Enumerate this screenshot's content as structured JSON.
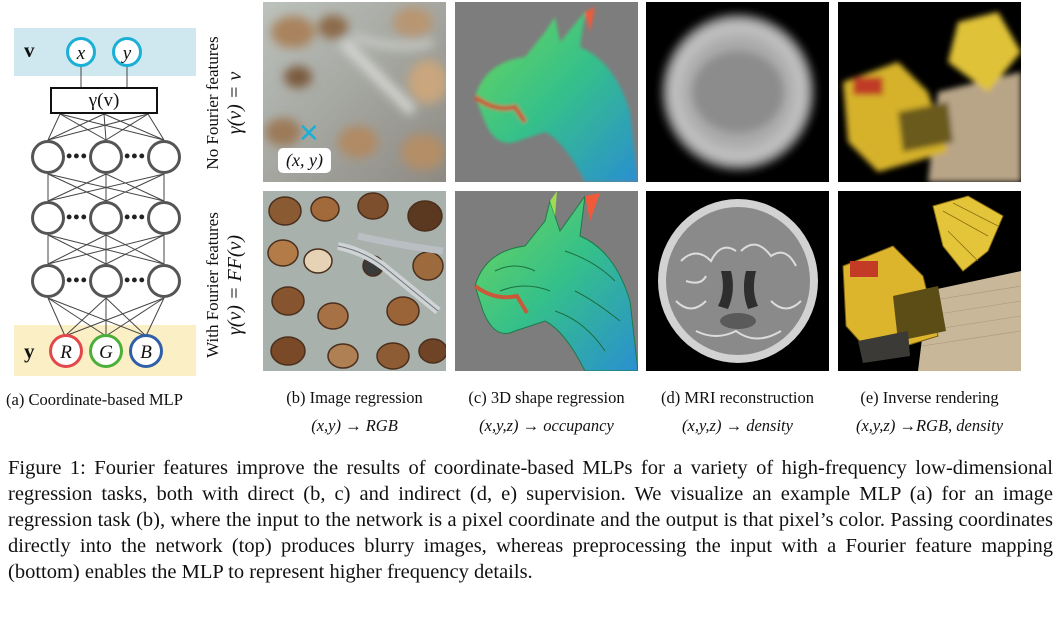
{
  "mlp": {
    "input_var": "v",
    "input_nodes": [
      "x",
      "y"
    ],
    "mapping_label": "γ(v)",
    "output_var": "y",
    "output_nodes": [
      "R",
      "G",
      "B"
    ],
    "output_colors": [
      "#e4474a",
      "#4caf3a",
      "#2e5fa8"
    ],
    "input_color": "#1ab0d6",
    "dots": "•••",
    "caption": "(a) Coordinate-based MLP"
  },
  "rows": {
    "top_label_line1": "No Fourier features",
    "top_label_line2": "γ(v) = v",
    "bottom_label_line1": "With Fourier features",
    "bottom_label_line2": "γ(v) = FF(v)"
  },
  "annotations": {
    "marker_label": "(x, y)",
    "marker_symbol": "✕"
  },
  "panels": [
    {
      "caption": "(b) Image regression",
      "io": "(x,y) → RGB"
    },
    {
      "caption": "(c) 3D shape regression",
      "io": "(x,y,z) → occupancy"
    },
    {
      "caption": "(d) MRI reconstruction",
      "io": "(x,y,z) → density"
    },
    {
      "caption": "(e) Inverse rendering",
      "io": "(x,y,z) →RGB, density"
    }
  ],
  "figure_caption": "Figure 1: Fourier features improve the results of coordinate-based MLPs for a variety of high-frequency low-dimensional regression tasks, both with direct (b, c) and indirect (d, e) supervision. We visualize an example MLP (a) for an image regression task (b), where the input to the network is a pixel coordinate and the output is that pixel’s color. Passing coordinates directly into the network (top) produces blurry images, whereas preprocessing the input with a Fourier feature mapping (bottom) enables the MLP to represent higher frequency details."
}
